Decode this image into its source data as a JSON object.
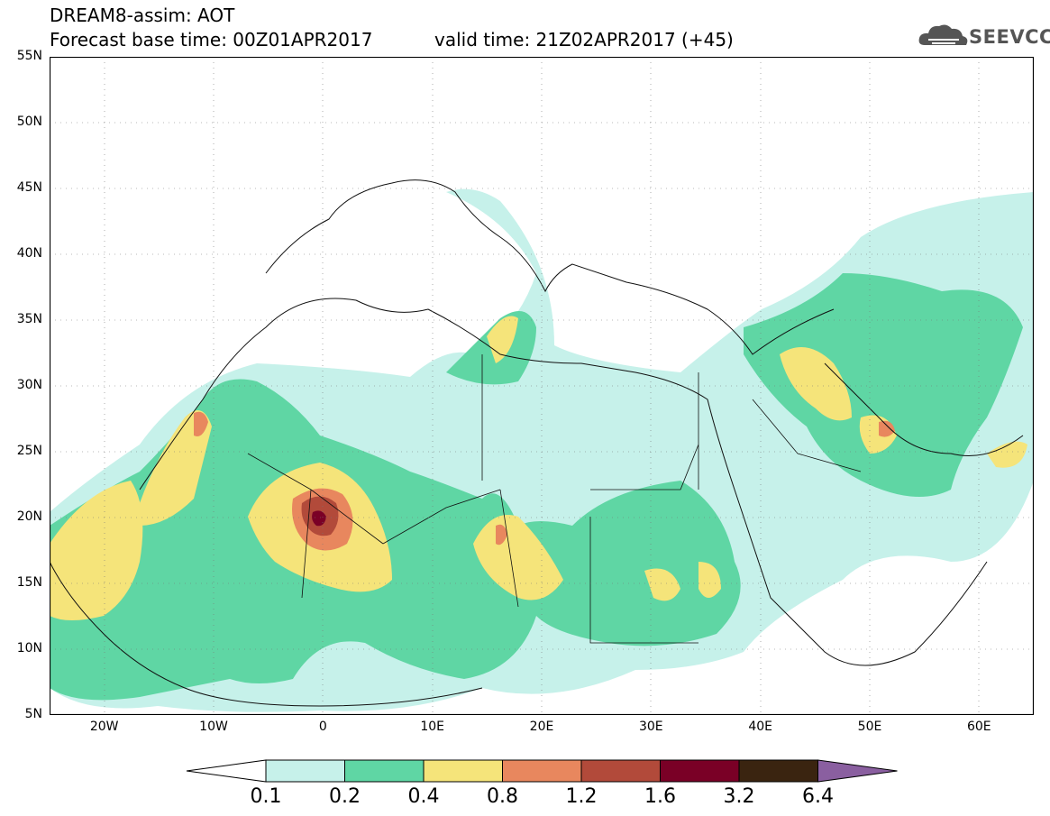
{
  "header": {
    "line1": "DREAM8-assim: AOT",
    "line2_left": "Forecast base time: 00Z01APR2017",
    "line2_right": "valid time: 21Z02APR2017 (+45)",
    "logo_text": "SEEVCCC"
  },
  "map": {
    "lat_labels": [
      "55N",
      "50N",
      "45N",
      "40N",
      "35N",
      "30N",
      "25N",
      "20N",
      "15N",
      "10N",
      "5N"
    ],
    "lon_labels": [
      "20W",
      "10W",
      "0",
      "10E",
      "20E",
      "30E",
      "40E",
      "50E",
      "60E"
    ],
    "lat_range": [
      5,
      55
    ],
    "lon_range": [
      -25,
      65
    ],
    "grid": "dotted"
  },
  "colorbar": {
    "labels": [
      "0.1",
      "0.2",
      "0.4",
      "0.8",
      "1.2",
      "1.6",
      "3.2",
      "6.4"
    ],
    "colors": [
      "#ffffff",
      "#c6f1ea",
      "#5fd6a4",
      "#f5e47a",
      "#e8875e",
      "#b24a3a",
      "#7a0026",
      "#3a2410",
      "#8a5fa0"
    ]
  }
}
